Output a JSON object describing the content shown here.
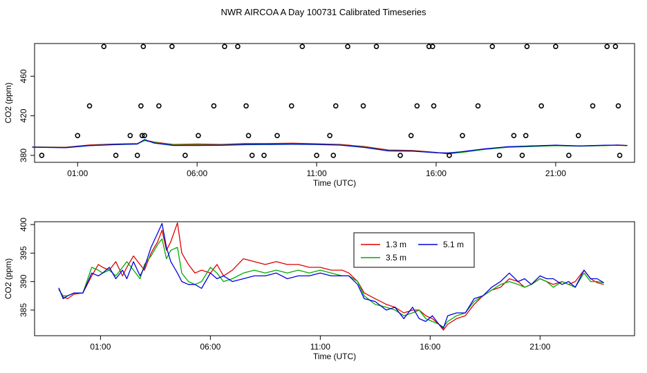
{
  "title": "NWR AIRCOA A  Day 100731  Calibrated Timeseries",
  "chart_data": [
    {
      "type": "scatter",
      "title": "",
      "xlabel": "Time (UTC)",
      "ylabel": "CO2 (ppm)",
      "xlim": [
        -0.8,
        24.3
      ],
      "ylim": [
        373,
        493
      ],
      "x_ticks": [
        1,
        6,
        11,
        16,
        21
      ],
      "x_tick_labels": [
        "01:00",
        "06:00",
        "11:00",
        "16:00",
        "21:00"
      ],
      "y_ticks": [
        380,
        420,
        460
      ],
      "y_tick_labels": [
        "380",
        "420",
        "460"
      ],
      "calibration_points": {
        "color": "#000000",
        "x": [
          -0.5,
          1.0,
          1.5,
          2.1,
          2.6,
          3.2,
          3.5,
          3.65,
          3.7,
          3.75,
          3.8,
          4.4,
          4.95,
          5.5,
          6.05,
          6.7,
          7.15,
          7.7,
          8.05,
          8.15,
          8.3,
          8.8,
          9.35,
          9.95,
          10.4,
          11.0,
          11.55,
          11.7,
          11.8,
          12.3,
          12.95,
          13.5,
          14.5,
          14.95,
          15.2,
          15.7,
          15.85,
          15.9,
          16.55,
          17.1,
          17.75,
          18.35,
          18.65,
          19.25,
          19.6,
          19.75,
          19.8,
          20.4,
          21.0,
          21.55,
          21.95,
          22.55,
          23.15,
          23.5,
          23.62,
          23.68
        ],
        "y": [
          380,
          400,
          430,
          490,
          380,
          400,
          380,
          430,
          400,
          490,
          400,
          430,
          490,
          380,
          400,
          430,
          490,
          490,
          430,
          400,
          380,
          380,
          400,
          430,
          490,
          380,
          400,
          380,
          430,
          490,
          430,
          490,
          380,
          400,
          430,
          490,
          490,
          430,
          380,
          400,
          430,
          490,
          380,
          400,
          380,
          400,
          490,
          430,
          490,
          380,
          400,
          430,
          490,
          490,
          430,
          380
        ]
      },
      "series": [
        {
          "name": "1.3 m",
          "color": "#dd0000",
          "x": [
            -0.9,
            0.5,
            1.5,
            2.5,
            3.5,
            3.8,
            4.2,
            5.0,
            6.0,
            7.0,
            8.0,
            9.0,
            10.0,
            11.0,
            12.0,
            13.0,
            14.0,
            15.0,
            16.0,
            16.5,
            17.0,
            18.0,
            19.0,
            20.0,
            21.0,
            22.0,
            23.0,
            23.6,
            24.0
          ],
          "y": [
            388.5,
            388.2,
            390.5,
            391.5,
            392.0,
            395.5,
            393.5,
            391.0,
            391.5,
            391.0,
            392.0,
            392.0,
            392.3,
            391.8,
            391.0,
            389.0,
            385.5,
            385.0,
            383.0,
            381.5,
            383.0,
            386.5,
            388.5,
            389.5,
            390.0,
            389.5,
            390.0,
            390.5,
            390.0
          ]
        },
        {
          "name": "3.5 m",
          "color": "#00aa00",
          "x": [
            -0.9,
            0.5,
            1.5,
            2.5,
            3.5,
            3.8,
            4.2,
            5.0,
            6.0,
            7.0,
            8.0,
            9.0,
            10.0,
            11.0,
            12.0,
            13.0,
            14.0,
            15.0,
            16.0,
            16.5,
            17.0,
            18.0,
            19.0,
            20.0,
            21.0,
            22.0,
            23.0,
            23.6,
            24.0
          ],
          "y": [
            388.4,
            388.0,
            390.0,
            391.0,
            391.6,
            395.0,
            393.0,
            390.5,
            390.5,
            390.6,
            391.2,
            391.4,
            391.5,
            391.3,
            390.6,
            388.4,
            384.8,
            384.5,
            382.6,
            382.0,
            382.8,
            386.0,
            388.2,
            389.0,
            389.8,
            389.3,
            389.8,
            390.2,
            389.8
          ]
        },
        {
          "name": "5.1 m",
          "color": "#0000dd",
          "x": [
            -0.9,
            0.5,
            1.5,
            2.5,
            3.5,
            3.8,
            4.2,
            5.0,
            6.0,
            7.0,
            8.0,
            9.0,
            10.0,
            11.0,
            12.0,
            13.0,
            14.0,
            15.0,
            16.0,
            16.5,
            17.0,
            18.0,
            19.0,
            20.0,
            21.0,
            22.0,
            23.0,
            23.6,
            24.0
          ],
          "y": [
            388.3,
            387.8,
            389.8,
            390.8,
            391.4,
            396.0,
            392.5,
            390.0,
            390.0,
            390.2,
            390.8,
            391.0,
            391.2,
            391.0,
            390.4,
            388.0,
            384.5,
            384.2,
            382.8,
            382.5,
            383.5,
            386.5,
            388.8,
            389.5,
            390.3,
            389.5,
            390.2,
            390.4,
            390.0
          ]
        }
      ]
    },
    {
      "type": "line",
      "title": "",
      "xlabel": "Time (UTC)",
      "ylabel": "CO2 (ppm)",
      "xlim": [
        -2.0,
        25.3
      ],
      "ylim": [
        380.5,
        400.5
      ],
      "x_ticks": [
        1,
        6,
        11,
        16,
        21
      ],
      "x_tick_labels": [
        "01:00",
        "06:00",
        "11:00",
        "16:00",
        "21:00"
      ],
      "y_ticks": [
        385,
        390,
        395,
        400
      ],
      "y_tick_labels": [
        "385",
        "390",
        "395",
        "400"
      ],
      "legend_position": "top-center",
      "series": [
        {
          "name": "1.3 m",
          "color": "#dd0000",
          "x": [
            -0.9,
            -0.7,
            -0.5,
            -0.2,
            0.2,
            0.6,
            0.9,
            1.1,
            1.4,
            1.7,
            2.0,
            2.2,
            2.5,
            2.8,
            3.0,
            3.3,
            3.6,
            3.8,
            4.0,
            4.2,
            4.5,
            4.7,
            5.0,
            5.3,
            5.6,
            6.0,
            6.3,
            6.6,
            7.0,
            7.5,
            8.0,
            8.5,
            9.0,
            9.5,
            10.0,
            10.5,
            11.0,
            11.5,
            12.0,
            12.3,
            12.7,
            13.0,
            13.5,
            14.0,
            14.4,
            14.8,
            15.2,
            15.5,
            15.8,
            16.1,
            16.4,
            16.6,
            16.8,
            17.2,
            17.6,
            18.0,
            18.4,
            18.8,
            19.2,
            19.6,
            20.0,
            20.3,
            20.6,
            21.0,
            21.3,
            21.6,
            22.0,
            22.3,
            22.6,
            23.0,
            23.3,
            23.6,
            23.9
          ],
          "y": [
            388.8,
            387.3,
            387.0,
            387.8,
            388.0,
            391.0,
            393.0,
            392.5,
            392.0,
            393.5,
            391.0,
            392.5,
            394.5,
            393.0,
            392.0,
            395.0,
            397.0,
            399.0,
            395.5,
            397.0,
            400.3,
            395.0,
            393.0,
            391.5,
            392.0,
            391.5,
            393.0,
            391.0,
            392.0,
            394.0,
            393.5,
            393.0,
            393.5,
            393.0,
            393.0,
            392.5,
            392.5,
            392.0,
            392.0,
            391.5,
            390.0,
            388.0,
            387.0,
            386.0,
            385.5,
            384.5,
            385.0,
            385.0,
            384.0,
            383.5,
            382.5,
            381.5,
            382.5,
            383.5,
            384.0,
            386.0,
            387.5,
            388.5,
            389.0,
            390.5,
            390.0,
            389.0,
            389.5,
            390.5,
            390.0,
            389.5,
            390.0,
            389.5,
            390.0,
            392.0,
            390.5,
            389.8,
            389.5
          ]
        },
        {
          "name": "3.5 m",
          "color": "#00aa00",
          "x": [
            -0.9,
            -0.7,
            -0.5,
            -0.2,
            0.2,
            0.6,
            0.9,
            1.1,
            1.4,
            1.7,
            2.0,
            2.2,
            2.5,
            2.8,
            3.0,
            3.3,
            3.6,
            3.8,
            4.0,
            4.2,
            4.5,
            4.7,
            5.0,
            5.3,
            5.6,
            6.0,
            6.3,
            6.6,
            7.0,
            7.5,
            8.0,
            8.5,
            9.0,
            9.5,
            10.0,
            10.5,
            11.0,
            11.5,
            12.0,
            12.3,
            12.7,
            13.0,
            13.5,
            14.0,
            14.4,
            14.8,
            15.2,
            15.5,
            15.8,
            16.1,
            16.4,
            16.6,
            16.8,
            17.2,
            17.6,
            18.0,
            18.4,
            18.8,
            19.2,
            19.6,
            20.0,
            20.3,
            20.6,
            21.0,
            21.3,
            21.6,
            22.0,
            22.3,
            22.6,
            23.0,
            23.3,
            23.6,
            23.9
          ],
          "y": [
            388.6,
            387.5,
            387.5,
            388.0,
            388.0,
            392.5,
            392.0,
            391.5,
            392.0,
            391.0,
            392.5,
            393.5,
            392.0,
            390.5,
            393.0,
            394.5,
            396.5,
            397.5,
            394.0,
            395.5,
            396.0,
            391.5,
            390.0,
            389.5,
            390.0,
            392.5,
            391.5,
            390.0,
            390.5,
            391.5,
            392.0,
            391.5,
            392.0,
            391.5,
            392.0,
            391.5,
            392.0,
            391.5,
            391.0,
            391.0,
            390.0,
            387.5,
            386.0,
            385.5,
            385.0,
            384.0,
            384.5,
            385.0,
            383.5,
            383.0,
            382.5,
            382.0,
            383.0,
            384.0,
            384.5,
            386.5,
            387.5,
            388.5,
            389.5,
            390.0,
            389.5,
            389.0,
            389.5,
            390.5,
            390.0,
            389.0,
            390.0,
            389.5,
            389.0,
            391.5,
            390.0,
            390.0,
            389.8
          ]
        },
        {
          "name": "5.1 m",
          "color": "#0000dd",
          "x": [
            -0.9,
            -0.7,
            -0.5,
            -0.2,
            0.2,
            0.6,
            0.9,
            1.1,
            1.4,
            1.7,
            2.0,
            2.2,
            2.5,
            2.8,
            3.0,
            3.3,
            3.6,
            3.8,
            4.0,
            4.2,
            4.5,
            4.7,
            5.0,
            5.3,
            5.6,
            6.0,
            6.3,
            6.6,
            7.0,
            7.5,
            8.0,
            8.5,
            9.0,
            9.5,
            10.0,
            10.5,
            11.0,
            11.5,
            12.0,
            12.3,
            12.7,
            13.0,
            13.5,
            14.0,
            14.4,
            14.8,
            15.2,
            15.5,
            15.8,
            16.1,
            16.4,
            16.6,
            16.8,
            17.2,
            17.6,
            18.0,
            18.4,
            18.8,
            19.2,
            19.6,
            20.0,
            20.3,
            20.6,
            21.0,
            21.3,
            21.6,
            22.0,
            22.3,
            22.6,
            23.0,
            23.3,
            23.6,
            23.9
          ],
          "y": [
            388.9,
            387.0,
            387.5,
            388.0,
            388.0,
            391.5,
            391.0,
            391.5,
            392.5,
            390.5,
            392.0,
            390.5,
            393.5,
            391.0,
            392.5,
            396.0,
            398.5,
            400.2,
            396.0,
            393.5,
            391.5,
            390.0,
            389.5,
            389.5,
            388.8,
            391.5,
            390.5,
            391.0,
            390.0,
            390.5,
            391.0,
            391.0,
            391.5,
            390.5,
            391.0,
            391.0,
            391.5,
            391.0,
            391.0,
            391.0,
            389.5,
            387.0,
            386.5,
            385.0,
            385.5,
            383.5,
            385.5,
            383.5,
            383.0,
            384.0,
            382.5,
            381.8,
            384.0,
            384.5,
            384.5,
            387.0,
            387.5,
            389.0,
            390.0,
            391.5,
            390.0,
            390.5,
            389.5,
            391.0,
            390.5,
            390.5,
            389.5,
            390.0,
            389.0,
            392.0,
            390.5,
            390.5,
            389.8
          ]
        }
      ]
    }
  ]
}
